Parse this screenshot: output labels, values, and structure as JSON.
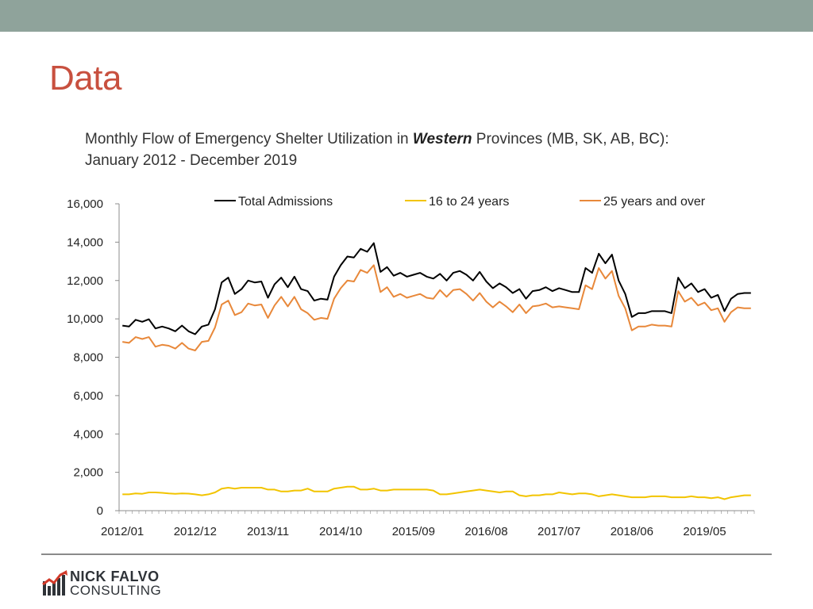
{
  "slide": {
    "title": "Data",
    "chart_title_pre": "Monthly Flow of Emergency Shelter Utilization in ",
    "chart_title_emph": "Western",
    "chart_title_post": " Provinces (MB, SK, AB, BC):",
    "chart_title_line2": "January 2012 - December 2019"
  },
  "logo": {
    "line1": "NICK FALVO",
    "line2": "CONSULTING"
  },
  "colors": {
    "accent": "#c8503f",
    "topbar": "#8fa39b"
  },
  "chart_data": {
    "type": "line",
    "title": "Monthly Flow of Emergency Shelter Utilization in Western Provinces (MB, SK, AB, BC): January 2012 - December 2019",
    "xlabel": "",
    "ylabel": "",
    "ylim": [
      0,
      16000
    ],
    "yticks": [
      0,
      2000,
      4000,
      6000,
      8000,
      10000,
      12000,
      14000,
      16000
    ],
    "ytick_labels": [
      "0",
      "2,000",
      "4,000",
      "6,000",
      "8,000",
      "10,000",
      "12,000",
      "14,000",
      "16,000"
    ],
    "xtick_labels": [
      "2012/01",
      "2012/12",
      "2013/11",
      "2014/10",
      "2015/09",
      "2016/08",
      "2017/07",
      "2018/06",
      "2019/05"
    ],
    "xtick_index": [
      0,
      11,
      22,
      33,
      44,
      55,
      66,
      77,
      88
    ],
    "n_points": 96,
    "legend_position": "top",
    "grid": false,
    "series": [
      {
        "name": "Total Admissions",
        "color": "#000000",
        "values": [
          9650,
          9600,
          9950,
          9850,
          9980,
          9500,
          9600,
          9500,
          9350,
          9650,
          9350,
          9200,
          9600,
          9700,
          10500,
          11900,
          12150,
          11300,
          11550,
          12000,
          11900,
          11950,
          11100,
          11800,
          12150,
          11650,
          12200,
          11550,
          11450,
          10950,
          11050,
          11000,
          12200,
          12800,
          13250,
          13200,
          13650,
          13500,
          13950,
          12450,
          12700,
          12250,
          12400,
          12200,
          12300,
          12400,
          12200,
          12100,
          12350,
          12000,
          12400,
          12500,
          12300,
          12000,
          12450,
          11950,
          11600,
          11850,
          11650,
          11350,
          11550,
          11050,
          11450,
          11500,
          11650,
          11450,
          11600,
          11500,
          11400,
          11400,
          12650,
          12400,
          13400,
          12900,
          13350,
          12000,
          11300,
          10100,
          10300,
          10300,
          10400,
          10400,
          10400,
          10300,
          12150,
          11600,
          11850,
          11400,
          11550,
          11100,
          11250,
          10400,
          11050,
          11300,
          11350,
          11350
        ]
      },
      {
        "name": "16 to 24 years",
        "color": "#f2c400",
        "values": [
          850,
          850,
          900,
          880,
          950,
          950,
          930,
          900,
          880,
          900,
          890,
          850,
          800,
          850,
          950,
          1150,
          1200,
          1150,
          1200,
          1200,
          1200,
          1200,
          1100,
          1100,
          1000,
          1000,
          1050,
          1050,
          1150,
          1000,
          1000,
          1000,
          1150,
          1200,
          1250,
          1250,
          1100,
          1100,
          1150,
          1050,
          1050,
          1100,
          1100,
          1100,
          1100,
          1100,
          1100,
          1050,
          850,
          850,
          900,
          950,
          1000,
          1050,
          1100,
          1050,
          1000,
          950,
          1000,
          1000,
          800,
          750,
          800,
          800,
          850,
          850,
          950,
          900,
          850,
          900,
          900,
          850,
          750,
          800,
          850,
          800,
          750,
          700,
          700,
          700,
          750,
          750,
          750,
          700,
          700,
          700,
          750,
          700,
          700,
          650,
          700,
          600,
          700,
          750,
          800,
          800
        ]
      },
      {
        "name": "25 years and over",
        "color": "#e8883a",
        "values": [
          8800,
          8750,
          9050,
          8950,
          9050,
          8550,
          8650,
          8600,
          8450,
          8750,
          8450,
          8350,
          8800,
          8850,
          9550,
          10750,
          10950,
          10200,
          10350,
          10800,
          10700,
          10750,
          10050,
          10700,
          11150,
          10650,
          11150,
          10500,
          10300,
          9950,
          10050,
          10000,
          11050,
          11600,
          12000,
          11950,
          12550,
          12400,
          12800,
          11400,
          11650,
          11150,
          11300,
          11100,
          11200,
          11300,
          11100,
          11050,
          11500,
          11150,
          11500,
          11550,
          11300,
          10950,
          11350,
          10900,
          10600,
          10900,
          10650,
          10350,
          10750,
          10300,
          10650,
          10700,
          10800,
          10600,
          10650,
          10600,
          10550,
          10500,
          11750,
          11550,
          12650,
          12100,
          12500,
          11200,
          10550,
          9400,
          9600,
          9600,
          9700,
          9650,
          9650,
          9600,
          11450,
          10900,
          11100,
          10700,
          10850,
          10450,
          10550,
          9850,
          10350,
          10600,
          10550,
          10550
        ]
      }
    ]
  }
}
